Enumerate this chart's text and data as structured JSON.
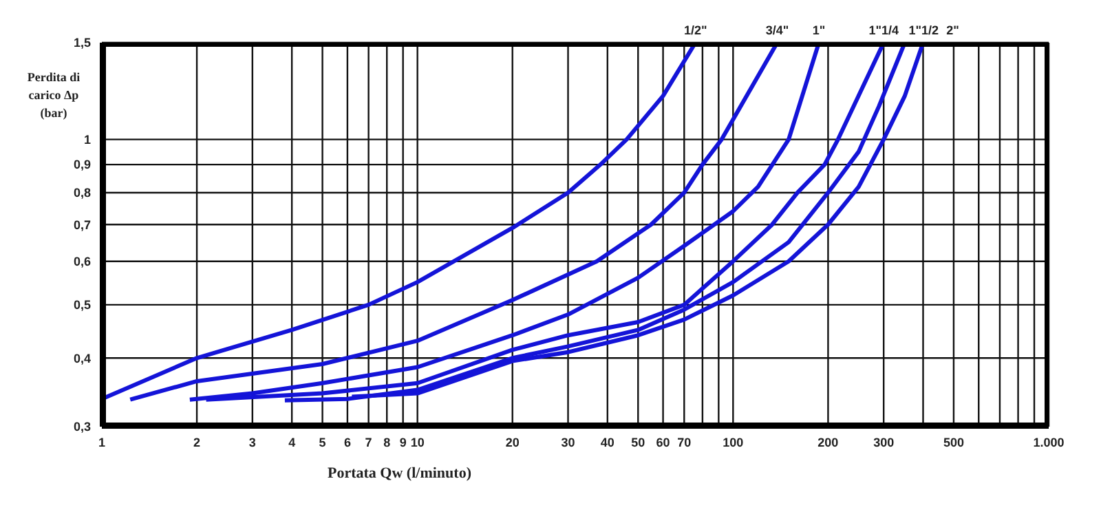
{
  "chart_data": {
    "type": "line",
    "xlabel": "Portata Qw (l/minuto)",
    "ylabel": "Perdita di carico Δp (bar)",
    "log": "xy",
    "grid": true,
    "xlim": [
      1,
      1000
    ],
    "ylim": [
      0.3,
      1.5
    ],
    "xticks": [
      1,
      2,
      3,
      4,
      5,
      6,
      7,
      8,
      9,
      10,
      20,
      30,
      40,
      50,
      60,
      70,
      {
        "value": 80,
        "label": null
      },
      {
        "value": 90,
        "label": null
      },
      100,
      200,
      300,
      {
        "value": 400,
        "label": null
      },
      500,
      {
        "value": 600,
        "label": null
      },
      {
        "value": 700,
        "label": null
      },
      {
        "value": 800,
        "label": null
      },
      {
        "value": 900,
        "label": null
      },
      {
        "value": 1000,
        "label": "1.000"
      }
    ],
    "yticks": [
      {
        "value": 0.3,
        "label": "0,3"
      },
      {
        "value": 0.4,
        "label": "0,4"
      },
      {
        "value": 0.5,
        "label": "0,5"
      },
      {
        "value": 0.6,
        "label": "0,6"
      },
      {
        "value": 0.7,
        "label": "0,7"
      },
      {
        "value": 0.8,
        "label": "0,8"
      },
      {
        "value": 0.9,
        "label": "0,9"
      },
      1,
      {
        "value": 1.5,
        "label": "1,5"
      }
    ],
    "series": [
      {
        "name": "1/2\"",
        "color": "#1414d8",
        "x": [
          1,
          2,
          4,
          7,
          10,
          20,
          30,
          38,
          46,
          60,
          76
        ],
        "values": [
          0.337,
          0.4,
          0.45,
          0.5,
          0.55,
          0.69,
          0.8,
          0.9,
          1.0,
          1.2,
          1.5
        ]
      },
      {
        "name": "3/4\"",
        "color": "#1414d8",
        "x": [
          1.23,
          2,
          5,
          10,
          20,
          37,
          55,
          70,
          80,
          92,
          138
        ],
        "values": [
          0.336,
          0.363,
          0.39,
          0.43,
          0.51,
          0.6,
          0.7,
          0.8,
          0.9,
          1.0,
          1.5
        ]
      },
      {
        "name": "1\"",
        "color": "#1414d8",
        "x": [
          1.9,
          3,
          5,
          10,
          20,
          30,
          50,
          70,
          100,
          120,
          150,
          187
        ],
        "values": [
          0.336,
          0.345,
          0.36,
          0.385,
          0.44,
          0.48,
          0.56,
          0.64,
          0.74,
          0.82,
          1.0,
          1.5
        ]
      },
      {
        "name": "1\"1/4",
        "color": "#1414d8",
        "x": [
          2.14,
          5,
          10,
          20,
          30,
          50,
          70,
          100,
          133,
          160,
          195,
          215,
          300
        ],
        "values": [
          0.336,
          0.345,
          0.36,
          0.414,
          0.44,
          0.465,
          0.5,
          0.6,
          0.7,
          0.8,
          0.9,
          1.0,
          1.5
        ]
      },
      {
        "name": "1\"1/2",
        "color": "#1414d8",
        "x": [
          3.8,
          6,
          10,
          20,
          30,
          50,
          70,
          100,
          150,
          200,
          250,
          290,
          350
        ],
        "values": [
          0.335,
          0.337,
          0.35,
          0.4,
          0.42,
          0.45,
          0.49,
          0.55,
          0.65,
          0.8,
          0.95,
          1.15,
          1.5
        ]
      },
      {
        "name": "2\"",
        "color": "#1414d8",
        "x": [
          6.2,
          10,
          20,
          30,
          50,
          70,
          100,
          150,
          200,
          250,
          300,
          350,
          400
        ],
        "values": [
          0.34,
          0.345,
          0.395,
          0.41,
          0.44,
          0.47,
          0.52,
          0.6,
          0.7,
          0.82,
          1.0,
          1.2,
          1.5
        ]
      }
    ]
  }
}
